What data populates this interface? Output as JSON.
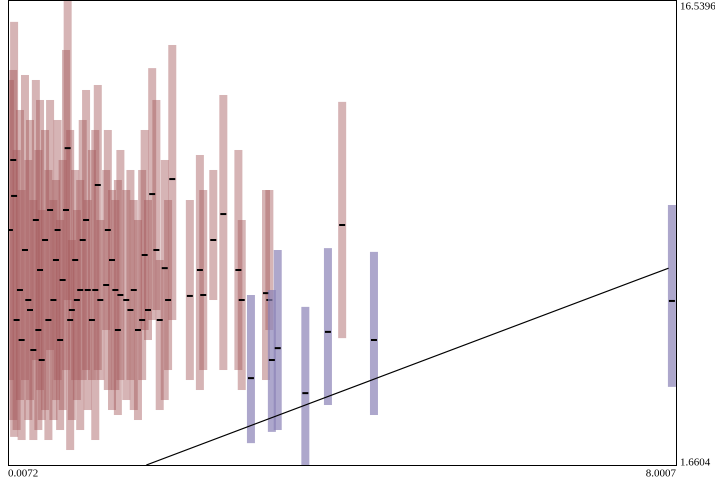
{
  "chart_data": {
    "type": "errorbar",
    "xlim": [
      0.0072,
      8.0007
    ],
    "ylim": [
      1.6604,
      16.5396
    ],
    "xticks": [
      0.0072,
      8.0007
    ],
    "yticks": [
      1.6604,
      16.5396
    ],
    "series": [
      {
        "color": "#a4585c",
        "x": [
          0.08,
          0.07,
          0.03,
          0.11,
          0.15,
          0.17,
          0.21,
          0.25,
          0.27,
          0.31,
          0.34,
          0.37,
          0.39,
          0.41,
          0.45,
          0.49,
          0.51,
          0.55,
          0.58,
          0.6,
          0.63,
          0.66,
          0.7,
          0.72,
          0.75,
          0.77,
          0.81,
          0.83,
          0.87,
          0.9,
          0.94,
          0.96,
          1.01,
          1.05,
          1.08,
          1.11,
          1.18,
          1.2,
          1.25,
          1.29,
          1.32,
          1.35,
          1.42,
          1.47,
          1.51,
          1.56,
          1.61,
          1.64,
          1.68,
          1.73,
          1.78,
          1.82,
          1.88,
          1.92,
          1.97,
          2.18,
          2.3,
          2.34,
          2.46,
          2.58,
          2.76,
          2.8,
          3.09,
          3.13,
          4.0
        ],
        "values": [
          10.27,
          11.42,
          9.18,
          6.3,
          7.26,
          5.66,
          8.54,
          6.94,
          6.62,
          5.34,
          9.5,
          5.98,
          7.9,
          5.02,
          8.86,
          6.3,
          9.82,
          6.94,
          8.22,
          9.18,
          5.66,
          7.58,
          9.82,
          11.8,
          6.3,
          6.62,
          8.22,
          6.94,
          7.26,
          8.86,
          9.5,
          7.26,
          6.3,
          7.26,
          10.62,
          6.94,
          7.42,
          9.18,
          8.22,
          7.26,
          5.98,
          7.1,
          6.94,
          6.62,
          7.26,
          5.98,
          6.3,
          8.38,
          6.62,
          10.33,
          8.54,
          6.3,
          7.96,
          6.94,
          10.81,
          7.07,
          7.9,
          7.1,
          8.86,
          9.69,
          7.9,
          6.94,
          7.16,
          6.94,
          9.34
        ],
        "low": [
          2.56,
          3.1,
          4.38,
          2.78,
          3.74,
          2.46,
          4.38,
          3.1,
          3.74,
          2.46,
          5.02,
          2.78,
          4.06,
          3.1,
          3.42,
          2.46,
          5.34,
          3.1,
          3.74,
          4.38,
          2.78,
          3.42,
          4.7,
          6.94,
          2.14,
          3.1,
          4.38,
          3.74,
          2.78,
          4.38,
          4.7,
          3.42,
          4.38,
          2.46,
          4.7,
          4.38,
          5.98,
          4.06,
          3.42,
          4.06,
          3.26,
          4.38,
          3.74,
          4.38,
          3.42,
          3.1,
          4.38,
          5.98,
          5.66,
          6.3,
          6.62,
          3.42,
          3.74,
          4.7,
          6.3,
          4.38,
          4.06,
          4.7,
          6.94,
          4.7,
          4.7,
          4.06,
          4.38,
          5.98,
          5.72
        ],
        "high": [
          15.84,
          14.3,
          13.98,
          11.74,
          13.02,
          10.46,
          14.14,
          11.42,
          12.7,
          10.14,
          13.98,
          11.74,
          13.34,
          9.82,
          12.38,
          11.1,
          13.34,
          10.14,
          10.78,
          12.7,
          9.5,
          11.42,
          14.94,
          16.54,
          12.38,
          8.86,
          11.1,
          9.82,
          10.78,
          12.7,
          13.66,
          10.14,
          11.74,
          12.38,
          13.82,
          9.5,
          11.1,
          12.38,
          10.46,
          10.14,
          10.78,
          11.74,
          10.46,
          11.1,
          10.14,
          9.5,
          11.1,
          12.38,
          10.14,
          14.36,
          13.34,
          8.22,
          11.42,
          10.14,
          15.1,
          10.14,
          11.58,
          10.46,
          11.1,
          13.5,
          11.74,
          9.5,
          10.46,
          10.46,
          13.28
        ]
      },
      {
        "color": "#8a82b6",
        "x": [
          2.91,
          3.16,
          3.23,
          3.56,
          3.83,
          4.38,
          7.94
        ],
        "values": [
          4.44,
          5.02,
          5.4,
          3.96,
          5.92,
          5.66,
          6.91
        ],
        "low": [
          2.36,
          2.72,
          2.78,
          1.66,
          3.58,
          3.26,
          4.16
        ],
        "high": [
          7.1,
          7.26,
          8.54,
          6.72,
          8.6,
          8.48,
          9.98
        ]
      }
    ],
    "trend": {
      "color": "#000000",
      "x": [
        1.66,
        7.9
      ],
      "values": [
        1.66,
        7.96
      ]
    }
  }
}
